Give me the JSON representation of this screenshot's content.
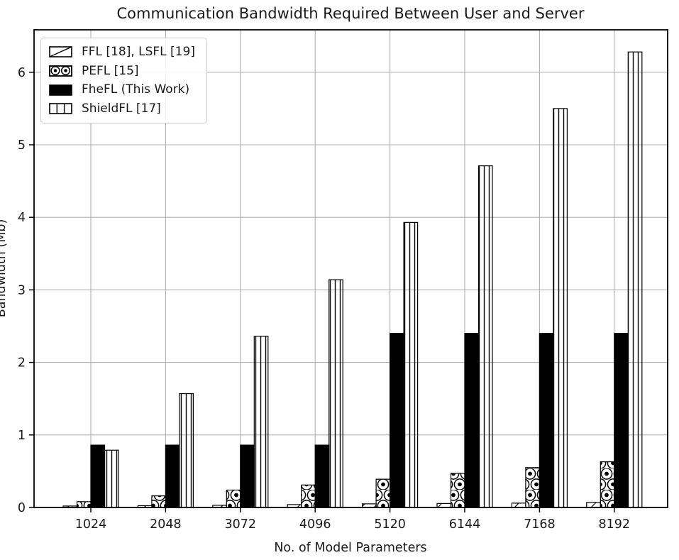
{
  "chart_data": {
    "type": "bar",
    "title": "Communication Bandwidth Required Between User and Server",
    "xlabel": "No. of Model Parameters",
    "ylabel": "Bandwidth (Mb)",
    "categories": [
      "1024",
      "2048",
      "3072",
      "4096",
      "5120",
      "6144",
      "7168",
      "8192"
    ],
    "series": [
      {
        "name": "FFL [18], LSFL [19]",
        "hatch": "diagonal",
        "fill": "white",
        "values": [
          0.02,
          0.025,
          0.03,
          0.04,
          0.05,
          0.055,
          0.06,
          0.07
        ]
      },
      {
        "name": "PEFL [15]",
        "hatch": "circles",
        "fill": "white",
        "values": [
          0.08,
          0.16,
          0.24,
          0.31,
          0.39,
          0.47,
          0.55,
          0.63
        ]
      },
      {
        "name": "FheFL (This Work)",
        "hatch": "none",
        "fill": "black",
        "values": [
          0.86,
          0.86,
          0.86,
          0.86,
          2.4,
          2.4,
          2.4,
          2.4
        ]
      },
      {
        "name": "ShieldFL [17]",
        "hatch": "vertical",
        "fill": "white",
        "values": [
          0.79,
          1.57,
          2.36,
          3.14,
          3.93,
          4.71,
          5.5,
          6.28
        ]
      }
    ],
    "yticks": [
      0,
      1,
      2,
      3,
      4,
      5,
      6
    ],
    "ylim": [
      0,
      6.58
    ],
    "grid": true,
    "legend_position": "upper left",
    "colors": {
      "bar_fill": "#ffffff",
      "bar_edge": "#000000",
      "grid": "#b0b0b0",
      "axis": "#000000",
      "text": "#1a1a1a",
      "legend_border": "#cccccc"
    }
  }
}
